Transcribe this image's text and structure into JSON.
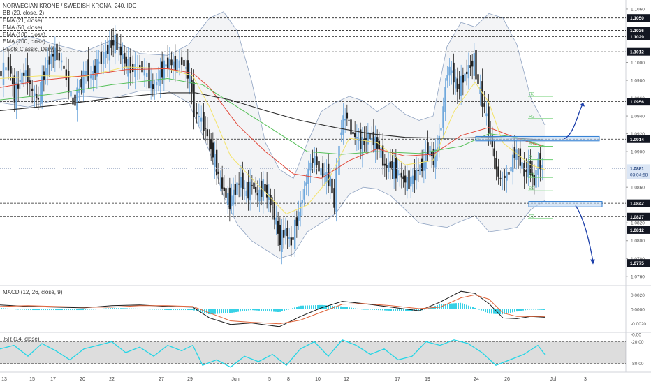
{
  "chart_data": {
    "type": "candlestick",
    "title": "NORWEGIAN KRONE / SWEDISH KRONA, 240, IDC",
    "indicators": [
      "BB (20, close, 2)",
      "EMA (21, close)",
      "EMA (50, close)",
      "EMA (100, close)",
      "EMA (200, close)",
      "Pivots Classic, Daily, 15"
    ],
    "x_ticks": [
      "13",
      "15",
      "17",
      "20",
      "22",
      "27",
      "29",
      "Jun",
      "5",
      "8",
      "10",
      "12",
      "17",
      "19",
      "24",
      "26",
      "Jul",
      "3"
    ],
    "y_ticks": [
      "1.1060",
      "1.1000",
      "1.0980",
      "1.0960",
      "1.0940",
      "1.0920",
      "1.0900",
      "1.0860",
      "1.0820",
      "1.0800",
      "1.0780",
      "1.0760"
    ],
    "ylim": [
      1.0752,
      1.1067
    ],
    "horizontal_levels": [
      {
        "label": "1.1050",
        "value": 1.105
      },
      {
        "label": "1.1036",
        "value": 1.1036
      },
      {
        "label": "1.1029",
        "value": 1.1029
      },
      {
        "label": "1.1012",
        "value": 1.1012
      },
      {
        "label": "1.0956",
        "value": 1.0956
      },
      {
        "label": "1.0914",
        "value": 1.0914
      },
      {
        "label": "1.0842",
        "value": 1.0842
      },
      {
        "label": "1.0827",
        "value": 1.0827
      },
      {
        "label": "1.0812",
        "value": 1.0812
      },
      {
        "label": "1.0775",
        "value": 1.0775
      }
    ],
    "current_price": {
      "label": "1.0881",
      "value": 1.0881,
      "countdown": "03:04:58"
    },
    "pivots": [
      {
        "name": "R3",
        "value": 1.0962
      },
      {
        "name": "R2",
        "value": 1.0937
      },
      {
        "name": "R1",
        "value": 1.0906
      },
      {
        "name": "P",
        "value": 1.0891
      },
      {
        "name": "S1",
        "value": 1.0871
      },
      {
        "name": "S2",
        "value": 1.0856
      },
      {
        "name": "S3",
        "value": 1.0825
      }
    ],
    "support_zone": [
      1.0838,
      1.0844
    ],
    "resistance_zone": [
      1.0912,
      1.0917
    ],
    "projections": {
      "up_target": 1.0956,
      "down_target": 1.0775
    },
    "price_path": [
      [
        0,
        1.0985
      ],
      [
        14,
        1.0998
      ],
      [
        22,
        1.0962
      ],
      [
        30,
        1.0982
      ],
      [
        38,
        1.099
      ],
      [
        48,
        1.0966
      ],
      [
        56,
        1.0958
      ],
      [
        64,
        1.0988
      ],
      [
        72,
        1.1003
      ],
      [
        80,
        1.1012
      ],
      [
        90,
        1.1
      ],
      [
        100,
        1.0972
      ],
      [
        106,
        1.0952
      ],
      [
        112,
        1.0965
      ],
      [
        118,
        1.0978
      ],
      [
        125,
        1.099
      ],
      [
        132,
        1.0984
      ],
      [
        140,
        1.0998
      ],
      [
        150,
        1.1008
      ],
      [
        158,
        1.1018
      ],
      [
        166,
        1.1024
      ],
      [
        174,
        1.101
      ],
      [
        182,
        1.0998
      ],
      [
        192,
        1.0992
      ],
      [
        202,
        1.0996
      ],
      [
        212,
        1.0985
      ],
      [
        220,
        1.097
      ],
      [
        228,
        1.0982
      ],
      [
        236,
        1.0996
      ],
      [
        244,
        1.1
      ],
      [
        252,
        1.0997
      ],
      [
        262,
        1.1001
      ],
      [
        270,
        1.0988
      ],
      [
        276,
        1.0968
      ],
      [
        280,
        1.0945
      ],
      [
        290,
        1.0935
      ],
      [
        298,
        1.0918
      ],
      [
        306,
        1.0897
      ],
      [
        314,
        1.0873
      ],
      [
        322,
        1.0855
      ],
      [
        330,
        1.0843
      ],
      [
        338,
        1.0858
      ],
      [
        346,
        1.0868
      ],
      [
        354,
        1.0852
      ],
      [
        362,
        1.0864
      ],
      [
        370,
        1.085
      ],
      [
        378,
        1.0861
      ],
      [
        386,
        1.0848
      ],
      [
        394,
        1.0829
      ],
      [
        402,
        1.08
      ],
      [
        410,
        1.0812
      ],
      [
        418,
        1.0796
      ],
      [
        426,
        1.0824
      ],
      [
        434,
        1.0847
      ],
      [
        440,
        1.0868
      ],
      [
        446,
        1.0888
      ],
      [
        452,
        1.0892
      ],
      [
        458,
        1.088
      ],
      [
        466,
        1.0874
      ],
      [
        474,
        1.0868
      ],
      [
        480,
        1.084
      ],
      [
        484,
        1.0878
      ],
      [
        490,
        1.093
      ],
      [
        498,
        1.0941
      ],
      [
        504,
        1.0922
      ],
      [
        512,
        1.0915
      ],
      [
        520,
        1.0908
      ],
      [
        528,
        1.0918
      ],
      [
        536,
        1.0912
      ],
      [
        544,
        1.0905
      ],
      [
        552,
        1.0882
      ],
      [
        560,
        1.0885
      ],
      [
        568,
        1.0878
      ],
      [
        576,
        1.0872
      ],
      [
        584,
        1.0865
      ],
      [
        592,
        1.087
      ],
      [
        600,
        1.088
      ],
      [
        608,
        1.0886
      ],
      [
        614,
        1.0905
      ],
      [
        622,
        1.089
      ],
      [
        630,
        1.0915
      ],
      [
        636,
        1.0948
      ],
      [
        642,
        1.0992
      ],
      [
        648,
        1.099
      ],
      [
        656,
        1.097
      ],
      [
        664,
        1.0982
      ],
      [
        672,
        1.0993
      ],
      [
        680,
        1.1002
      ],
      [
        686,
        1.0975
      ],
      [
        692,
        1.0958
      ],
      [
        698,
        1.0938
      ],
      [
        706,
        1.0906
      ],
      [
        712,
        1.088
      ],
      [
        718,
        1.0868
      ],
      [
        724,
        1.0872
      ],
      [
        730,
        1.0876
      ],
      [
        738,
        1.09
      ],
      [
        746,
        1.089
      ],
      [
        752,
        1.0875
      ],
      [
        758,
        1.0884
      ],
      [
        766,
        1.0864
      ],
      [
        772,
        1.089
      ],
      [
        778,
        1.0881
      ]
    ],
    "ema21": [
      [
        0,
        1.0982
      ],
      [
        60,
        1.0985
      ],
      [
        120,
        1.0984
      ],
      [
        180,
        1.0995
      ],
      [
        240,
        1.0993
      ],
      [
        276,
        1.0985
      ],
      [
        300,
        1.095
      ],
      [
        330,
        1.0895
      ],
      [
        370,
        1.0862
      ],
      [
        410,
        1.083
      ],
      [
        440,
        1.084
      ],
      [
        470,
        1.0868
      ],
      [
        500,
        1.0915
      ],
      [
        540,
        1.091
      ],
      [
        580,
        1.0885
      ],
      [
        620,
        1.089
      ],
      [
        650,
        1.0945
      ],
      [
        680,
        1.0978
      ],
      [
        700,
        1.0955
      ],
      [
        720,
        1.091
      ],
      [
        760,
        1.0885
      ],
      [
        780,
        1.088
      ]
    ],
    "ema50": [
      [
        0,
        1.0972
      ],
      [
        60,
        1.098
      ],
      [
        120,
        1.0985
      ],
      [
        180,
        1.0992
      ],
      [
        240,
        1.0993
      ],
      [
        276,
        1.0988
      ],
      [
        300,
        1.0972
      ],
      [
        340,
        1.093
      ],
      [
        380,
        1.09
      ],
      [
        420,
        1.0875
      ],
      [
        460,
        1.087
      ],
      [
        500,
        1.089
      ],
      [
        540,
        1.0903
      ],
      [
        580,
        1.0895
      ],
      [
        620,
        1.0897
      ],
      [
        660,
        1.0918
      ],
      [
        700,
        1.0927
      ],
      [
        740,
        1.0915
      ],
      [
        780,
        1.0905
      ]
    ],
    "ema100": [
      [
        0,
        1.0958
      ],
      [
        80,
        1.0965
      ],
      [
        160,
        1.0975
      ],
      [
        240,
        1.0982
      ],
      [
        290,
        1.0975
      ],
      [
        340,
        1.095
      ],
      [
        390,
        1.0925
      ],
      [
        440,
        1.09
      ],
      [
        490,
        1.0897
      ],
      [
        540,
        1.09
      ],
      [
        600,
        1.0898
      ],
      [
        660,
        1.0906
      ],
      [
        700,
        1.092
      ],
      [
        740,
        1.0916
      ],
      [
        780,
        1.0906
      ]
    ],
    "ema200": [
      [
        0,
        1.0946
      ],
      [
        80,
        1.0952
      ],
      [
        160,
        1.096
      ],
      [
        240,
        1.0966
      ],
      [
        280,
        1.0966
      ],
      [
        330,
        1.0958
      ],
      [
        380,
        1.0946
      ],
      [
        430,
        1.0935
      ],
      [
        480,
        1.0927
      ],
      [
        530,
        1.092
      ],
      [
        580,
        1.0916
      ],
      [
        640,
        1.0915
      ],
      [
        700,
        1.0916
      ],
      [
        740,
        1.0915
      ],
      [
        780,
        1.0913
      ]
    ],
    "bb_upper": [
      [
        0,
        1.1012
      ],
      [
        40,
        1.103
      ],
      [
        80,
        1.102
      ],
      [
        120,
        1.1012
      ],
      [
        160,
        1.1025
      ],
      [
        200,
        1.101
      ],
      [
        240,
        1.1008
      ],
      [
        270,
        1.102
      ],
      [
        300,
        1.105
      ],
      [
        320,
        1.1057
      ],
      [
        340,
        1.1035
      ],
      [
        360,
        1.098
      ],
      [
        380,
        1.091
      ],
      [
        400,
        1.088
      ],
      [
        420,
        1.087
      ],
      [
        440,
        1.091
      ],
      [
        460,
        1.0945
      ],
      [
        480,
        1.0955
      ],
      [
        500,
        1.0962
      ],
      [
        520,
        1.0957
      ],
      [
        540,
        1.0945
      ],
      [
        560,
        1.0955
      ],
      [
        580,
        1.0942
      ],
      [
        600,
        1.0935
      ],
      [
        620,
        1.094
      ],
      [
        640,
        1.1018
      ],
      [
        660,
        1.1045
      ],
      [
        680,
        1.104
      ],
      [
        700,
        1.1055
      ],
      [
        720,
        1.105
      ],
      [
        740,
        1.102
      ],
      [
        760,
        1.096
      ],
      [
        780,
        1.093
      ]
    ],
    "bb_lower": [
      [
        0,
        1.0955
      ],
      [
        40,
        1.095
      ],
      [
        80,
        1.0958
      ],
      [
        120,
        1.0962
      ],
      [
        160,
        1.096
      ],
      [
        200,
        1.0968
      ],
      [
        240,
        1.0968
      ],
      [
        270,
        1.0955
      ],
      [
        300,
        1.09
      ],
      [
        320,
        1.085
      ],
      [
        340,
        1.0818
      ],
      [
        360,
        1.08
      ],
      [
        380,
        1.079
      ],
      [
        400,
        1.078
      ],
      [
        420,
        1.0785
      ],
      [
        440,
        1.081
      ],
      [
        460,
        1.082
      ],
      [
        480,
        1.083
      ],
      [
        500,
        1.0852
      ],
      [
        520,
        1.086
      ],
      [
        540,
        1.0858
      ],
      [
        560,
        1.085
      ],
      [
        580,
        1.0835
      ],
      [
        600,
        1.082
      ],
      [
        620,
        1.0817
      ],
      [
        640,
        1.0815
      ],
      [
        660,
        1.0822
      ],
      [
        680,
        1.0828
      ],
      [
        700,
        1.081
      ],
      [
        720,
        1.0812
      ],
      [
        740,
        1.0815
      ],
      [
        760,
        1.0835
      ],
      [
        780,
        1.0845
      ]
    ]
  },
  "macd": {
    "label": "MACD (12, 26, close, 9)",
    "y_ticks": [
      "0.0020",
      "0.0000",
      "-0.0020"
    ],
    "ylim": [
      -0.003,
      0.003
    ],
    "macd_line": [
      [
        0,
        0.0006
      ],
      [
        40,
        0.0004
      ],
      [
        80,
        0.0003
      ],
      [
        120,
        0.0002
      ],
      [
        160,
        0.0005
      ],
      [
        200,
        0.0006
      ],
      [
        240,
        0.0004
      ],
      [
        276,
        0.0003
      ],
      [
        300,
        -0.0012
      ],
      [
        330,
        -0.0021
      ],
      [
        360,
        -0.0019
      ],
      [
        400,
        -0.0024
      ],
      [
        430,
        -0.001
      ],
      [
        460,
        0.0002
      ],
      [
        490,
        0.0011
      ],
      [
        520,
        0.0008
      ],
      [
        560,
        0.0003
      ],
      [
        600,
        -0.0002
      ],
      [
        630,
        0.001
      ],
      [
        660,
        0.0025
      ],
      [
        680,
        0.0022
      ],
      [
        700,
        0.0008
      ],
      [
        720,
        -0.0012
      ],
      [
        740,
        -0.0013
      ],
      [
        760,
        -0.001
      ],
      [
        780,
        -0.0011
      ]
    ],
    "signal_line": [
      [
        0,
        0.0004
      ],
      [
        40,
        0.0005
      ],
      [
        80,
        0.0004
      ],
      [
        120,
        0.0003
      ],
      [
        160,
        0.0003
      ],
      [
        200,
        0.0005
      ],
      [
        240,
        0.0005
      ],
      [
        276,
        0.0004
      ],
      [
        300,
        -0.0005
      ],
      [
        330,
        -0.0016
      ],
      [
        360,
        -0.0018
      ],
      [
        400,
        -0.002
      ],
      [
        430,
        -0.0015
      ],
      [
        460,
        -0.0004
      ],
      [
        490,
        0.0007
      ],
      [
        520,
        0.0008
      ],
      [
        560,
        0.0005
      ],
      [
        600,
        0.0001
      ],
      [
        630,
        0.0003
      ],
      [
        660,
        0.0016
      ],
      [
        680,
        0.002
      ],
      [
        700,
        0.0014
      ],
      [
        720,
        -0.0005
      ],
      [
        740,
        -0.001
      ],
      [
        760,
        -0.001
      ],
      [
        780,
        -0.001
      ]
    ]
  },
  "willr": {
    "label": "%R (14, close)",
    "y_ticks": [
      "-0.00",
      "-20.00",
      "-80.00"
    ],
    "ylim": [
      -100,
      0
    ],
    "band": [
      -20,
      -80
    ],
    "values": [
      [
        0,
        -40
      ],
      [
        20,
        -30
      ],
      [
        40,
        -60
      ],
      [
        60,
        -25
      ],
      [
        80,
        -45
      ],
      [
        100,
        -70
      ],
      [
        120,
        -40
      ],
      [
        140,
        -30
      ],
      [
        160,
        -20
      ],
      [
        180,
        -50
      ],
      [
        200,
        -35
      ],
      [
        220,
        -60
      ],
      [
        240,
        -30
      ],
      [
        260,
        -45
      ],
      [
        276,
        -30
      ],
      [
        290,
        -85
      ],
      [
        310,
        -70
      ],
      [
        330,
        -90
      ],
      [
        350,
        -60
      ],
      [
        370,
        -75
      ],
      [
        390,
        -55
      ],
      [
        410,
        -85
      ],
      [
        430,
        -40
      ],
      [
        450,
        -20
      ],
      [
        470,
        -60
      ],
      [
        490,
        -15
      ],
      [
        510,
        -30
      ],
      [
        530,
        -55
      ],
      [
        550,
        -40
      ],
      [
        570,
        -70
      ],
      [
        590,
        -60
      ],
      [
        610,
        -20
      ],
      [
        630,
        -30
      ],
      [
        650,
        -15
      ],
      [
        670,
        -25
      ],
      [
        690,
        -50
      ],
      [
        710,
        -85
      ],
      [
        730,
        -70
      ],
      [
        750,
        -55
      ],
      [
        770,
        -30
      ],
      [
        780,
        -55
      ]
    ]
  }
}
